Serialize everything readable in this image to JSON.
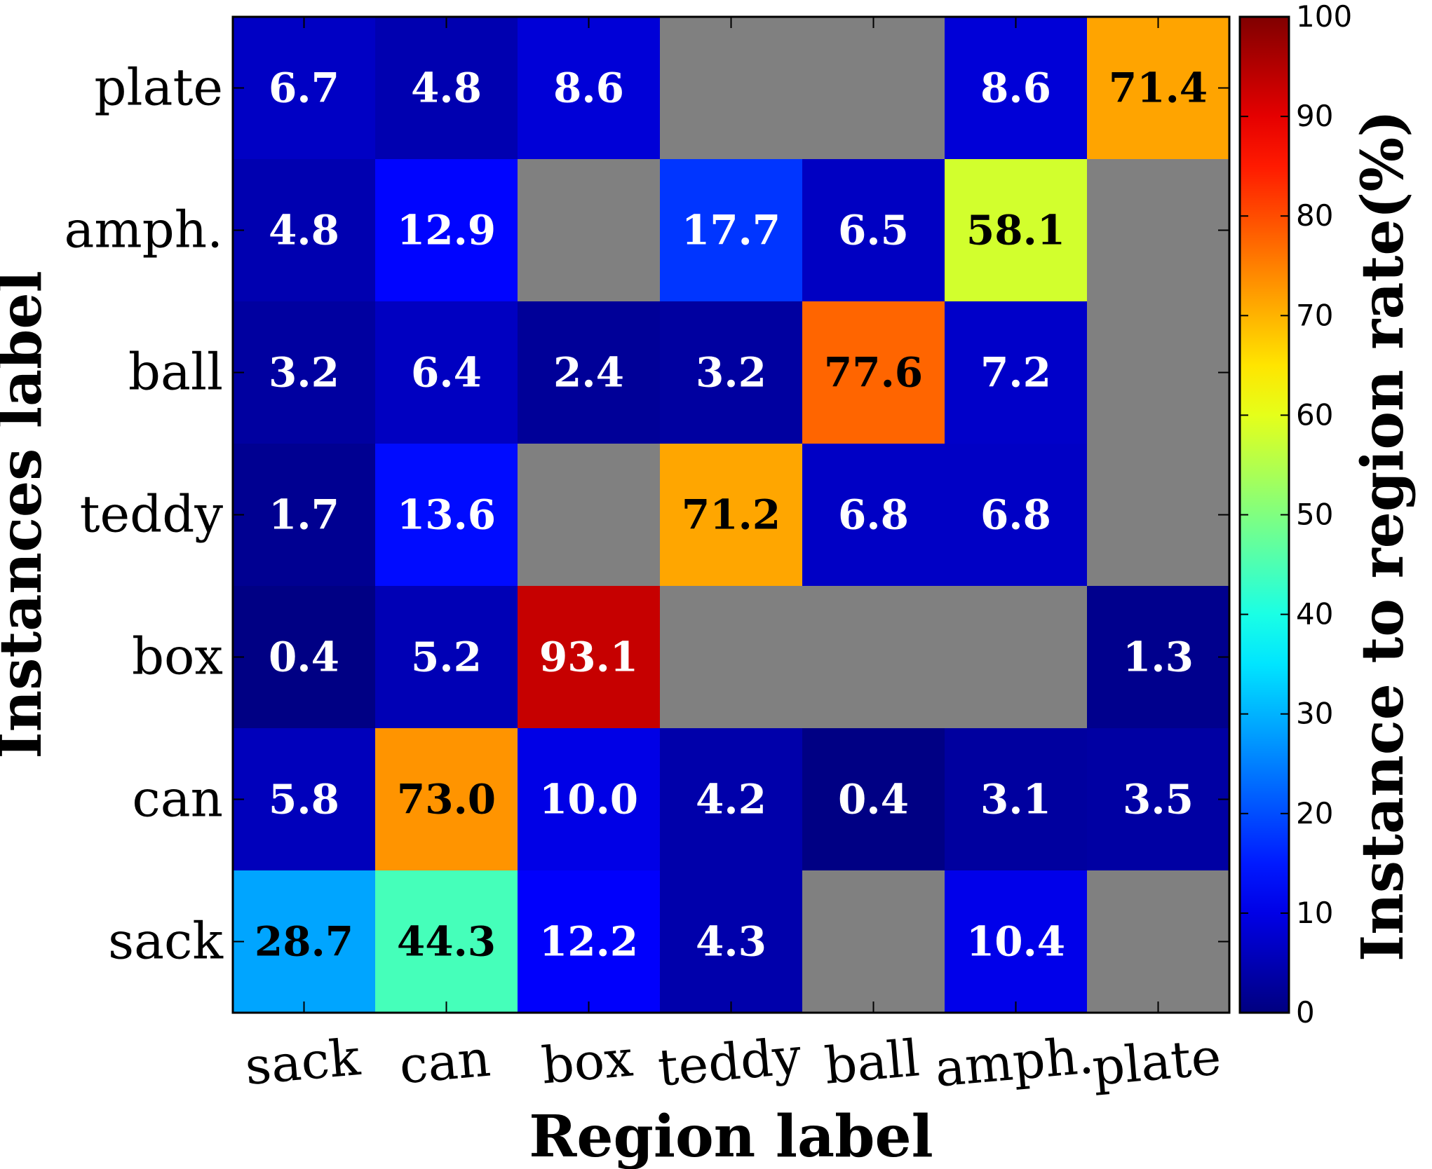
{
  "chart_data": {
    "type": "heatmap",
    "xlabel": "Region label",
    "ylabel": "Instances label",
    "colorbar_label": "Instance to region rate(%)",
    "x_categories": [
      "sack",
      "can",
      "box",
      "teddy",
      "ball",
      "amph.",
      "plate"
    ],
    "y_categories": [
      "plate",
      "amph.",
      "ball",
      "teddy",
      "box",
      "can",
      "sack"
    ],
    "values": [
      [
        6.7,
        4.8,
        8.6,
        null,
        null,
        8.6,
        71.4
      ],
      [
        4.8,
        12.9,
        null,
        17.7,
        6.5,
        58.1,
        null
      ],
      [
        3.2,
        6.4,
        2.4,
        3.2,
        77.6,
        7.2,
        null
      ],
      [
        1.7,
        13.6,
        null,
        71.2,
        6.8,
        6.8,
        null
      ],
      [
        0.4,
        5.2,
        93.1,
        null,
        null,
        null,
        1.3
      ],
      [
        5.8,
        73.0,
        10.0,
        4.2,
        0.4,
        3.1,
        3.5
      ],
      [
        28.7,
        44.3,
        12.2,
        4.3,
        null,
        10.4,
        null
      ]
    ],
    "value_labels": [
      [
        "6.7",
        "4.8",
        "8.6",
        "",
        "",
        "8.6",
        "71.4"
      ],
      [
        "4.8",
        "12.9",
        "",
        "17.7",
        "6.5",
        "58.1",
        ""
      ],
      [
        "3.2",
        "6.4",
        "2.4",
        "3.2",
        "77.6",
        "7.2",
        ""
      ],
      [
        "1.7",
        "13.6",
        "",
        "71.2",
        "6.8",
        "6.8",
        ""
      ],
      [
        "0.4",
        "5.2",
        "93.1",
        "",
        "",
        "",
        "1.3"
      ],
      [
        "5.8",
        "73.0",
        "10.0",
        "4.2",
        "0.4",
        "3.1",
        "3.5"
      ],
      [
        "28.7",
        "44.3",
        "12.2",
        "4.3",
        "",
        "10.4",
        ""
      ]
    ],
    "missing_color": "#808080",
    "colormap": "jet",
    "crange": [
      0,
      100
    ],
    "colorbar_ticks": [
      "0",
      "10",
      "20",
      "30",
      "40",
      "50",
      "60",
      "70",
      "80",
      "90",
      "100"
    ],
    "colorbar_position": "right",
    "grid": false
  }
}
